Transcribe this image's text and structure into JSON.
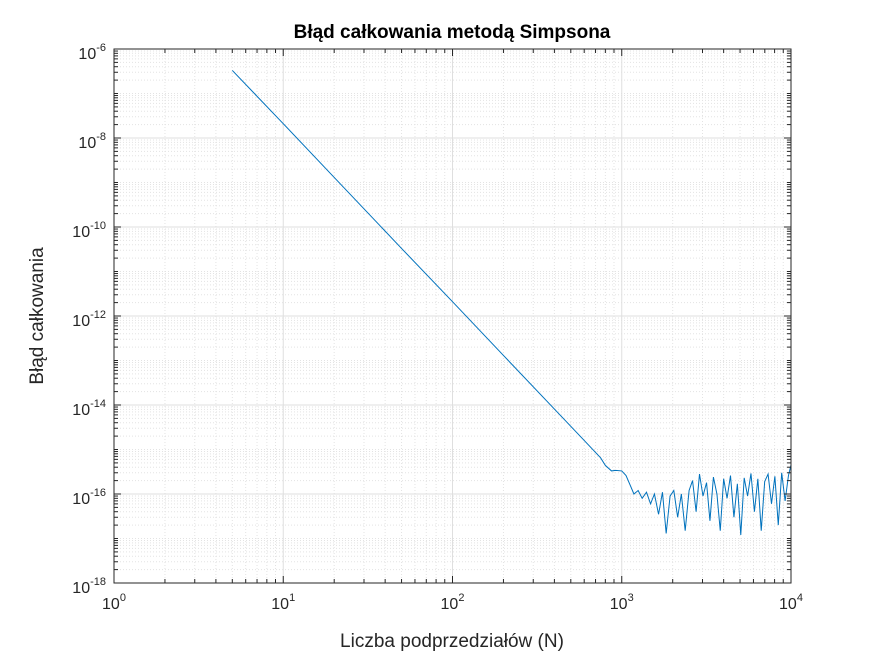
{
  "chart_data": {
    "type": "line",
    "title": "Błąd całkowania metodą Simpsona",
    "xlabel": "Liczba podprzedziałów (N)",
    "ylabel": "Błąd całkowania",
    "xscale": "log",
    "yscale": "log",
    "xlim": [
      1,
      10000
    ],
    "ylim": [
      1e-18,
      1e-06
    ],
    "grid": true,
    "minor_grid": true,
    "x_ticks": [
      {
        "base": "10",
        "exp": "0",
        "value": 1
      },
      {
        "base": "10",
        "exp": "1",
        "value": 10
      },
      {
        "base": "10",
        "exp": "2",
        "value": 100
      },
      {
        "base": "10",
        "exp": "3",
        "value": 1000
      },
      {
        "base": "10",
        "exp": "4",
        "value": 10000
      }
    ],
    "y_ticks": [
      {
        "base": "10",
        "exp": "-18",
        "value": 1e-18
      },
      {
        "base": "10",
        "exp": "-16",
        "value": 1e-16
      },
      {
        "base": "10",
        "exp": "-14",
        "value": 1e-14
      },
      {
        "base": "10",
        "exp": "-12",
        "value": 1e-12
      },
      {
        "base": "10",
        "exp": "-10",
        "value": 1e-10
      },
      {
        "base": "10",
        "exp": "-8",
        "value": 1e-08
      },
      {
        "base": "10",
        "exp": "-6",
        "value": 1e-06
      }
    ],
    "line_color": "#0072BD",
    "series": [
      {
        "values": [
          [
            5,
            3.3e-07
          ],
          [
            10,
            2.1e-08
          ],
          [
            20,
            1.3e-09
          ],
          [
            50,
            3.3e-11
          ],
          [
            100,
            2.1e-12
          ],
          [
            200,
            1.3e-13
          ],
          [
            400,
            8.1e-15
          ],
          [
            600,
            1.6e-15
          ],
          [
            750,
            6.5e-16
          ],
          [
            800,
            4.4e-16
          ],
          [
            870,
            3.3e-16
          ],
          [
            920,
            3.4e-16
          ],
          [
            1000,
            3.3e-16
          ],
          [
            1060,
            2.6e-16
          ],
          [
            1120,
            1.6e-16
          ],
          [
            1180,
            1e-16
          ],
          [
            1250,
            1.2e-16
          ],
          [
            1320,
            8e-17
          ],
          [
            1400,
            1.1e-16
          ],
          [
            1480,
            6e-17
          ],
          [
            1560,
            1e-16
          ],
          [
            1650,
            3.5e-17
          ],
          [
            1740,
            1.1e-16
          ],
          [
            1830,
            1.3e-17
          ],
          [
            1930,
            9e-17
          ],
          [
            2030,
            1.2e-16
          ],
          [
            2140,
            3e-17
          ],
          [
            2250,
            1e-16
          ],
          [
            2370,
            1.5e-17
          ],
          [
            2500,
            1.2e-16
          ],
          [
            2620,
            2e-16
          ],
          [
            2750,
            4e-17
          ],
          [
            2880,
            2.8e-16
          ],
          [
            3020,
            9e-17
          ],
          [
            3170,
            1.8e-16
          ],
          [
            3320,
            2.5e-17
          ],
          [
            3480,
            2.4e-16
          ],
          [
            3650,
            1e-16
          ],
          [
            3820,
            1.5e-17
          ],
          [
            4000,
            2.2e-16
          ],
          [
            4190,
            8e-17
          ],
          [
            4390,
            2.6e-16
          ],
          [
            4600,
            3e-17
          ],
          [
            4820,
            1.7e-16
          ],
          [
            5050,
            1.2e-17
          ],
          [
            5290,
            2.3e-16
          ],
          [
            5540,
            9e-17
          ],
          [
            5800,
            2.9e-16
          ],
          [
            6080,
            4e-17
          ],
          [
            6370,
            2.2e-16
          ],
          [
            6670,
            1.5e-17
          ],
          [
            6990,
            1.9e-16
          ],
          [
            7320,
            2.8e-16
          ],
          [
            7670,
            6e-17
          ],
          [
            8030,
            2.5e-16
          ],
          [
            8410,
            2e-17
          ],
          [
            8810,
            3e-16
          ],
          [
            9230,
            7e-17
          ],
          [
            9660,
            2.6e-16
          ],
          [
            10000,
            4.5e-16
          ]
        ]
      }
    ]
  }
}
